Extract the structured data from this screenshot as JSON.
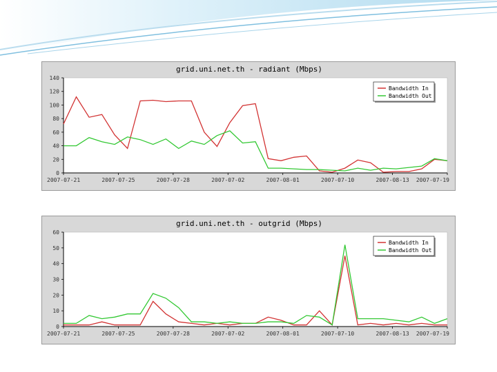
{
  "chart_data": [
    {
      "type": "line",
      "title": "grid.uni.net.th - radiant (Mbps)",
      "x_ticks": [
        "2007-07-21",
        "2007-07-25",
        "2007-07-28",
        "2007-07-02",
        "2007-08-01",
        "2007-07-10",
        "2007-08-13",
        "2007-07-19"
      ],
      "y_ticks": [
        "0",
        "20",
        "40",
        "60",
        "80",
        "100",
        "120",
        "140"
      ],
      "ylim": [
        0,
        140
      ],
      "grid": false,
      "legend_position": "top-right",
      "series": [
        {
          "name": "Bandwidth In",
          "color": "#d23232",
          "values": [
            72,
            112,
            82,
            86,
            56,
            36,
            106,
            107,
            105,
            106,
            106,
            60,
            39,
            74,
            99,
            102,
            21,
            18,
            23,
            25,
            3,
            1,
            7,
            19,
            15,
            1,
            2,
            2,
            6,
            20,
            18
          ]
        },
        {
          "name": "Bandwidth Out",
          "color": "#32c832",
          "values": [
            40,
            40,
            52,
            46,
            42,
            53,
            49,
            42,
            50,
            36,
            47,
            42,
            55,
            62,
            44,
            46,
            7,
            7,
            6,
            5,
            5,
            4,
            3,
            7,
            4,
            7,
            6,
            8,
            10,
            21,
            18
          ]
        }
      ]
    },
    {
      "type": "line",
      "title": "grid.uni.net.th - outgrid (Mbps)",
      "x_ticks": [
        "2007-07-21",
        "2007-07-25",
        "2007-07-28",
        "2007-07-02",
        "2007-08-01",
        "2007-07-10",
        "2007-08-13",
        "2007-07-19"
      ],
      "y_ticks": [
        "0",
        "10",
        "20",
        "30",
        "40",
        "50",
        "60"
      ],
      "ylim": [
        0,
        60
      ],
      "grid": false,
      "legend_position": "top-right",
      "series": [
        {
          "name": "Bandwidth In",
          "color": "#d23232",
          "values": [
            1,
            1,
            1,
            3,
            1,
            1,
            1,
            16,
            8,
            3,
            2,
            1,
            2,
            1,
            2,
            2,
            6,
            4,
            1,
            1,
            10,
            1,
            45,
            1,
            2,
            1,
            2,
            1,
            2,
            1,
            1
          ]
        },
        {
          "name": "Bandwidth Out",
          "color": "#32c832",
          "values": [
            2,
            2,
            7,
            5,
            6,
            8,
            8,
            21,
            18,
            12,
            3,
            3,
            2,
            3,
            2,
            2,
            3,
            3,
            2,
            7,
            6,
            1,
            52,
            5,
            5,
            5,
            4,
            3,
            6,
            2,
            5
          ]
        }
      ]
    }
  ]
}
